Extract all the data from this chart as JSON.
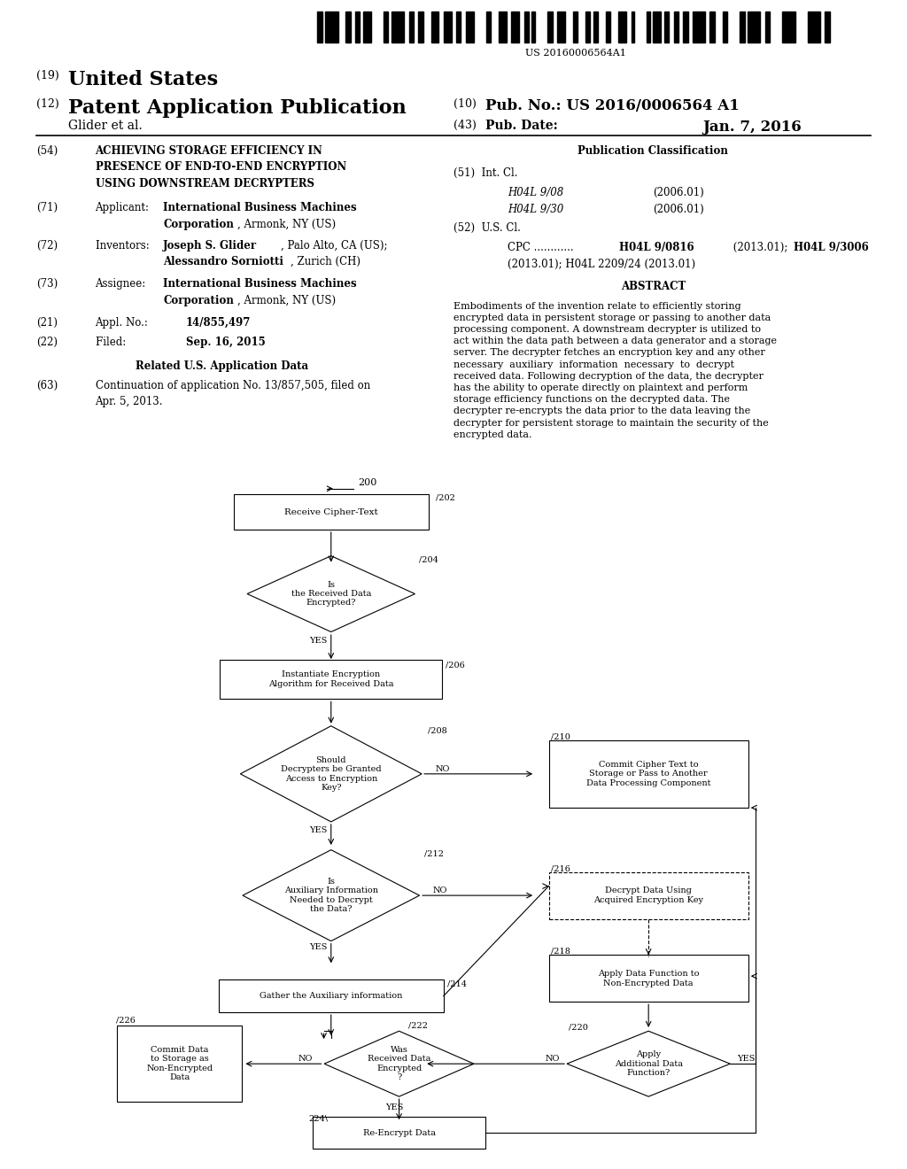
{
  "background_color": "#ffffff",
  "barcode_text": "US 20160006564A1",
  "header_line1_num": "(19)",
  "header_line1_text": "United States",
  "header_line2_num": "(12)",
  "header_line2_text": "Patent Application Publication",
  "header_right1_num": "(10)",
  "header_right1_text": "Pub. No.: US 2016/0006564 A1",
  "header_right2_num": "(43)",
  "header_right2_text": "Pub. Date:",
  "header_right2_date": "Jan. 7, 2016",
  "header_author": "Glider et al.",
  "abstract_text": "Embodiments of the invention relate to efficiently storing\nencrypted data in persistent storage or passing to another data\nprocessing component. A downstream decrypter is utilized to\nact within the data path between a data generator and a storage\nserver. The decrypter fetches an encryption key and any other\nnecessary  auxiliary  information  necessary  to  decrypt\nreceived data. Following decryption of the data, the decrypter\nhas the ability to operate directly on plaintext and perform\nstorage efficiency functions on the decrypted data. The\ndecrypter re-encrypts the data prior to the data leaving the\ndecrypter for persistent storage to maintain the security of the\nencrypted data."
}
